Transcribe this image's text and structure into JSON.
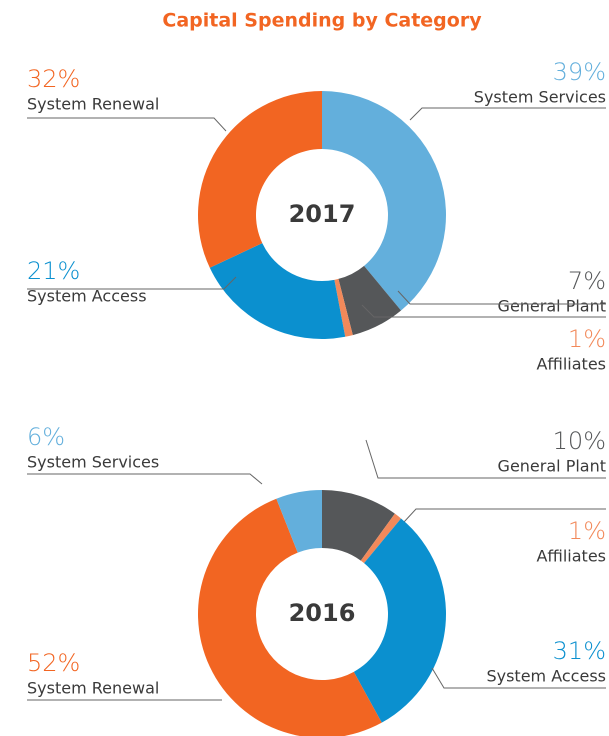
{
  "title": "Capital Spending by Category",
  "chart_data": [
    {
      "type": "pie",
      "center_label": "2017",
      "categories": [
        "System Services",
        "General Plant",
        "Affiliates",
        "System Access",
        "System Renewal"
      ],
      "values": [
        39,
        7,
        1,
        21,
        32
      ],
      "value_labels": [
        "39%",
        "7%",
        "1%",
        "21%",
        "32%"
      ],
      "colors": [
        "#63afdc",
        "#555759",
        "#f2895a",
        "#0b90cf",
        "#f26522"
      ]
    },
    {
      "type": "pie",
      "center_label": "2016",
      "categories": [
        "General Plant",
        "Affiliates",
        "System Access",
        "System Renewal",
        "System Services"
      ],
      "values": [
        10,
        1,
        31,
        52,
        6
      ],
      "value_labels": [
        "10%",
        "1%",
        "31%",
        "52%",
        "6%"
      ],
      "colors": [
        "#555759",
        "#f2895a",
        "#0b90cf",
        "#f26522",
        "#63afdc"
      ]
    }
  ]
}
